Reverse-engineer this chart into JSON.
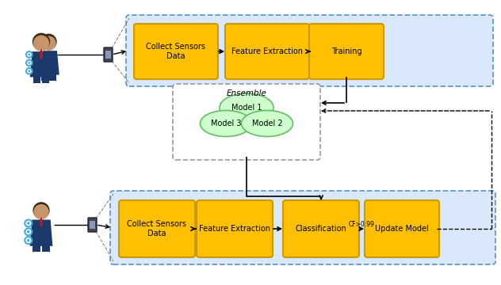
{
  "bg_color": "#ffffff",
  "box_color": "#FFC000",
  "box_edge": "#CC9900",
  "container_bg": "#DAE8FC",
  "container_edge": "#6699CC",
  "ensemble_bg": "#ffffff",
  "ensemble_edge": "#888888",
  "ellipse_color": "#CCFFCC",
  "ellipse_edge": "#66BB66",
  "top_boxes": [
    "Collect Sensors\nData",
    "Feature Extraction",
    "Training"
  ],
  "bottom_boxes": [
    "Collect Sensors\nData",
    "Feature Extraction",
    "Classification",
    "Update Model"
  ],
  "ensemble_label": "Ensemble",
  "model_labels": [
    "Model 1",
    "Model 3",
    "Model 2"
  ],
  "cf_label": "CF>0.99",
  "arrow_color": "#000000",
  "person_body": "#1B3A6B",
  "person_suit": "#1B3A6B",
  "person_skin": "#D4956A",
  "person_hair": "#3A2A1A",
  "sensor_color": "#44AADD",
  "phone_color": "#555566",
  "phone_screen": "#888899",
  "tie_color": "#AA2222"
}
